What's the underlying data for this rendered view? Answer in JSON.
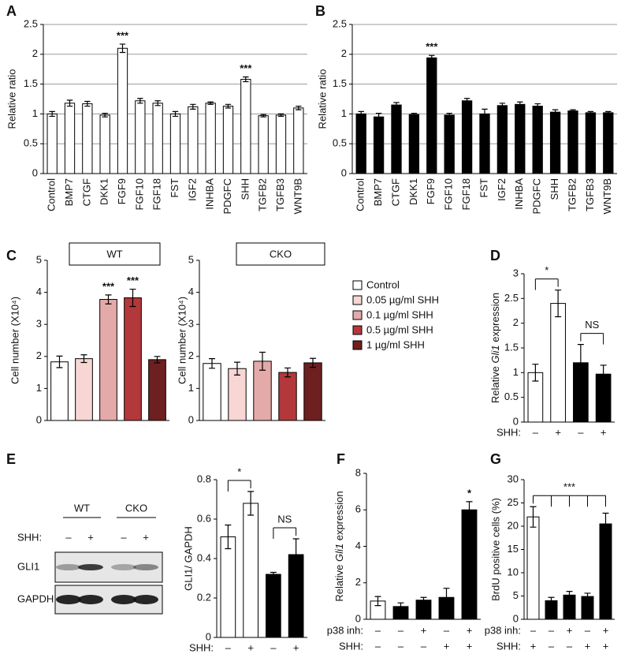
{
  "chart_data": [
    {
      "type": "bar",
      "panel": "A",
      "ylabel": "Relative ratio",
      "categories": [
        "Control",
        "BMP7",
        "CTGF",
        "DKK1",
        "FGF9",
        "FGF10",
        "FGF18",
        "FST",
        "IGF2",
        "INHBA",
        "PDGFC",
        "SHH",
        "TGFB2",
        "TGFB3",
        "WNT9B"
      ],
      "values": [
        1.0,
        1.18,
        1.17,
        0.98,
        2.1,
        1.22,
        1.18,
        1.0,
        1.12,
        1.18,
        1.13,
        1.58,
        0.97,
        0.98,
        1.1
      ],
      "errors": [
        0.04,
        0.05,
        0.04,
        0.03,
        0.07,
        0.04,
        0.04,
        0.04,
        0.04,
        0.02,
        0.03,
        0.04,
        0.02,
        0.02,
        0.03
      ],
      "color": "#ffffff",
      "ylim": [
        0,
        2.5
      ],
      "yticks": [
        0,
        0.5,
        1,
        1.5,
        2,
        2.5
      ],
      "grid": true,
      "annotations": [
        "***",
        "***"
      ]
    },
    {
      "type": "bar",
      "panel": "B",
      "ylabel": "Relative ratio",
      "categories": [
        "Control",
        "BMP7",
        "CTGF",
        "DKK1",
        "FGF9",
        "FGF10",
        "FGF18",
        "FST",
        "IGF2",
        "INHBA",
        "PDGFC",
        "SHH",
        "TGFB2",
        "TGFB3",
        "WNT9B"
      ],
      "values": [
        1.0,
        0.95,
        1.15,
        0.99,
        1.94,
        0.98,
        1.22,
        1.0,
        1.14,
        1.16,
        1.13,
        1.03,
        1.05,
        1.02,
        1.02
      ],
      "errors": [
        0.04,
        0.06,
        0.04,
        0.02,
        0.04,
        0.03,
        0.04,
        0.08,
        0.04,
        0.04,
        0.04,
        0.04,
        0.02,
        0.02,
        0.02
      ],
      "color": "#000000",
      "ylim": [
        0,
        2.5
      ],
      "yticks": [
        0,
        0.5,
        1,
        1.5,
        2,
        2.5
      ],
      "grid": true,
      "annotations": [
        "***"
      ]
    },
    {
      "type": "grouped-bar",
      "panel": "C",
      "ylabel": "Cell number (X10⁴)",
      "categories": [
        "WT",
        "CKO"
      ],
      "series": [
        {
          "name": "Control",
          "color": "#ffffff",
          "values": [
            1.83,
            1.78
          ],
          "errors": [
            0.18,
            0.15
          ]
        },
        {
          "name": "0.05 µg/ml SHH",
          "color": "#f7d6d3",
          "values": [
            1.93,
            1.62
          ],
          "errors": [
            0.12,
            0.2
          ]
        },
        {
          "name": "0.1 µg/ml SHH",
          "color": "#e4aaa9",
          "values": [
            3.78,
            1.85
          ],
          "errors": [
            0.14,
            0.28
          ]
        },
        {
          "name": "0.5 µg/ml SHH",
          "color": "#b3383b",
          "values": [
            3.83,
            1.5
          ],
          "errors": [
            0.27,
            0.14
          ]
        },
        {
          "name": "1 µg/ml SHH",
          "color": "#6e1f20",
          "values": [
            1.9,
            1.8
          ],
          "errors": [
            0.1,
            0.14
          ]
        }
      ],
      "ylim": [
        0,
        5
      ],
      "yticks": [
        0,
        1,
        2,
        3,
        4,
        5
      ],
      "grid": false,
      "annotations": [
        "***",
        "***"
      ]
    },
    {
      "type": "bar",
      "panel": "D",
      "ylabel": [
        "Relative ",
        "Gli1",
        " expression"
      ],
      "values": [
        1.0,
        2.4,
        1.2,
        0.97
      ],
      "errors": [
        0.17,
        0.27,
        0.37,
        0.18
      ],
      "colors": [
        "#ffffff",
        "#ffffff",
        "#000000",
        "#000000"
      ],
      "ylim": [
        0,
        3
      ],
      "yticks": [
        0,
        0.5,
        1,
        1.5,
        2,
        2.5,
        3
      ],
      "grid": false,
      "annotations": [
        "*",
        "NS"
      ],
      "conditions": [
        {
          "label": "SHH:",
          "values": [
            "–",
            "+",
            "–",
            "+"
          ]
        }
      ]
    },
    {
      "type": "bar",
      "panel": "E",
      "ylabel": "GLI1/ GAPDH",
      "values": [
        0.51,
        0.68,
        0.32,
        0.42
      ],
      "errors": [
        0.06,
        0.06,
        0.01,
        0.08
      ],
      "colors": [
        "#ffffff",
        "#ffffff",
        "#000000",
        "#000000"
      ],
      "ylim": [
        0,
        0.8
      ],
      "yticks": [
        0,
        0.2,
        0.4,
        0.6,
        0.8
      ],
      "grid": false,
      "annotations": [
        "*",
        "NS"
      ],
      "conditions": [
        {
          "label": "SHH:",
          "values": [
            "–",
            "+",
            "–",
            "+"
          ]
        }
      ]
    },
    {
      "type": "bar",
      "panel": "F",
      "ylabel": [
        "Relative ",
        "Gli1",
        " expression"
      ],
      "values": [
        1.0,
        0.7,
        1.05,
        1.2,
        6.0
      ],
      "errors": [
        0.25,
        0.2,
        0.15,
        0.5,
        0.45
      ],
      "colors": [
        "#ffffff",
        "#000000",
        "#000000",
        "#000000",
        "#000000"
      ],
      "ylim": [
        0,
        8
      ],
      "yticks": [
        0,
        2,
        4,
        6,
        8
      ],
      "grid": false,
      "annotations": [
        "*"
      ],
      "conditions": [
        {
          "label": "p38 inh:",
          "values": [
            "–",
            "–",
            "+",
            "–",
            "+"
          ]
        },
        {
          "label": "SHH:",
          "values": [
            "–",
            "–",
            "–",
            "+",
            "+"
          ]
        }
      ]
    },
    {
      "type": "bar",
      "panel": "G",
      "ylabel": "BrdU positive cells (%)",
      "values": [
        22,
        4,
        5.2,
        4.9,
        20.5
      ],
      "errors": [
        2.2,
        0.7,
        0.8,
        0.7,
        2.3
      ],
      "colors": [
        "#ffffff",
        "#000000",
        "#000000",
        "#000000",
        "#000000"
      ],
      "ylim": [
        0,
        30
      ],
      "yticks": [
        0,
        5,
        10,
        15,
        20,
        25,
        30
      ],
      "grid": false,
      "annotations": [
        "***"
      ],
      "conditions": [
        {
          "label": "p38 inh:",
          "values": [
            "–",
            "–",
            "+",
            "–",
            "+"
          ]
        },
        {
          "label": "SHH:",
          "values": [
            "+",
            "–",
            "–",
            "+",
            "+"
          ]
        }
      ]
    }
  ],
  "blot": {
    "groups": [
      "WT",
      "CKO"
    ],
    "condition_label": "SHH:",
    "conditions": [
      "–",
      "+",
      "–",
      "+"
    ],
    "rows": [
      "GLI1",
      "GAPDH"
    ]
  }
}
